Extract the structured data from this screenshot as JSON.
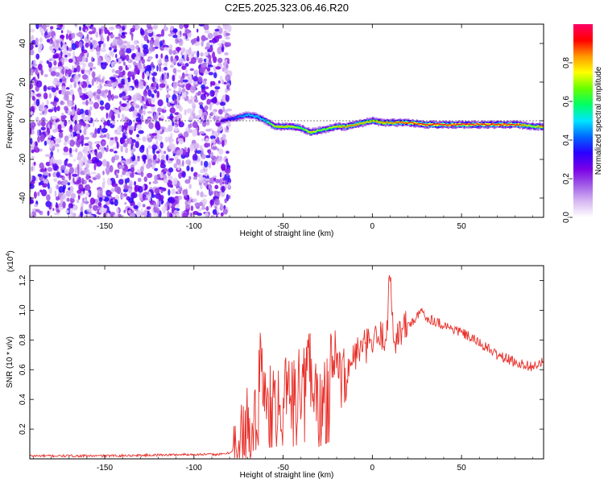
{
  "figure_title": "C2E5.2025.323.06.46.R20",
  "chart_data": [
    {
      "type": "heatmap",
      "title": "C2E5.2025.323.06.46.R20",
      "xlabel": "Height of straight line (km)",
      "ylabel": "Frequency (Hz)",
      "xlim": [
        -192,
        96
      ],
      "ylim": [
        -50,
        50
      ],
      "x_ticks": [
        -150,
        -100,
        -50,
        0,
        50
      ],
      "y_ticks": [
        -40,
        -20,
        0,
        20,
        40
      ],
      "noise_region_x": [
        -192,
        -80
      ],
      "ridge": {
        "x": [
          -85,
          -80,
          -75,
          -70,
          -65,
          -60,
          -55,
          -50,
          -45,
          -40,
          -35,
          -30,
          -25,
          -20,
          -15,
          -10,
          -5,
          0,
          5,
          10,
          15,
          20,
          30,
          40,
          50,
          60,
          70,
          80,
          90,
          95
        ],
        "frequency": [
          0,
          1,
          2,
          3,
          2,
          0,
          -3,
          -3,
          -3,
          -4,
          -6,
          -5,
          -4,
          -3,
          -3,
          -2,
          -1,
          0,
          -1,
          -1,
          -1,
          -1,
          -2,
          -2,
          -2,
          -2,
          -2,
          -2,
          -3,
          -3
        ],
        "amplitude": [
          0.3,
          0.35,
          0.45,
          0.5,
          0.5,
          0.55,
          0.8,
          0.8,
          0.75,
          0.65,
          0.8,
          0.7,
          0.7,
          0.8,
          0.85,
          0.85,
          0.8,
          0.8,
          0.85,
          0.85,
          0.9,
          0.9,
          0.95,
          0.95,
          0.95,
          0.95,
          0.95,
          0.95,
          0.7,
          0.9
        ]
      },
      "colorbar": {
        "label": "Normalized spectral amplitude",
        "range": [
          0.0,
          1.0
        ],
        "ticks": [
          "0.0",
          "0.2",
          "0.4",
          "0.6",
          "0.8"
        ],
        "colors": [
          "#ffffff",
          "#d6b8f2",
          "#a15ce6",
          "#7a00e6",
          "#2a00ff",
          "#0066ff",
          "#00e6ff",
          "#00ff66",
          "#66ff00",
          "#ffff00",
          "#ff9900",
          "#ff0000",
          "#ff0066"
        ]
      }
    },
    {
      "type": "line",
      "title": "",
      "xlabel": "Height of straight line (km)",
      "ylabel": "SNR (10 * v/v)",
      "y_multiplier_label": "(x10",
      "y_multiplier_exp": "4",
      "y_multiplier_close": ")",
      "xlim": [
        -192,
        96
      ],
      "ylim": [
        0.0,
        1.3
      ],
      "x_ticks": [
        -150,
        -100,
        -50,
        0,
        50
      ],
      "y_ticks": [
        0.2,
        0.4,
        0.6,
        0.8,
        1.0,
        1.2
      ],
      "color": "#e8302a",
      "series": [
        {
          "name": "SNR",
          "x": [
            -192,
            -150,
            -100,
            -85,
            -80,
            -75,
            -70,
            -65,
            -62,
            -60,
            -55,
            -50,
            -45,
            -40,
            -35,
            -30,
            -25,
            -20,
            -15,
            -12,
            -10,
            -5,
            0,
            5,
            8,
            10,
            12,
            15,
            20,
            25,
            28,
            30,
            35,
            40,
            50,
            60,
            70,
            80,
            90,
            96
          ],
          "values": [
            0.02,
            0.02,
            0.03,
            0.03,
            0.04,
            0.1,
            0.22,
            0.3,
            0.7,
            0.35,
            0.4,
            0.45,
            0.4,
            0.5,
            0.65,
            0.4,
            0.55,
            0.6,
            0.5,
            0.65,
            0.7,
            0.75,
            0.78,
            0.82,
            0.85,
            1.25,
            0.8,
            0.85,
            0.9,
            0.95,
            1.0,
            0.95,
            0.93,
            0.9,
            0.85,
            0.78,
            0.7,
            0.65,
            0.62,
            0.65
          ]
        }
      ]
    }
  ]
}
